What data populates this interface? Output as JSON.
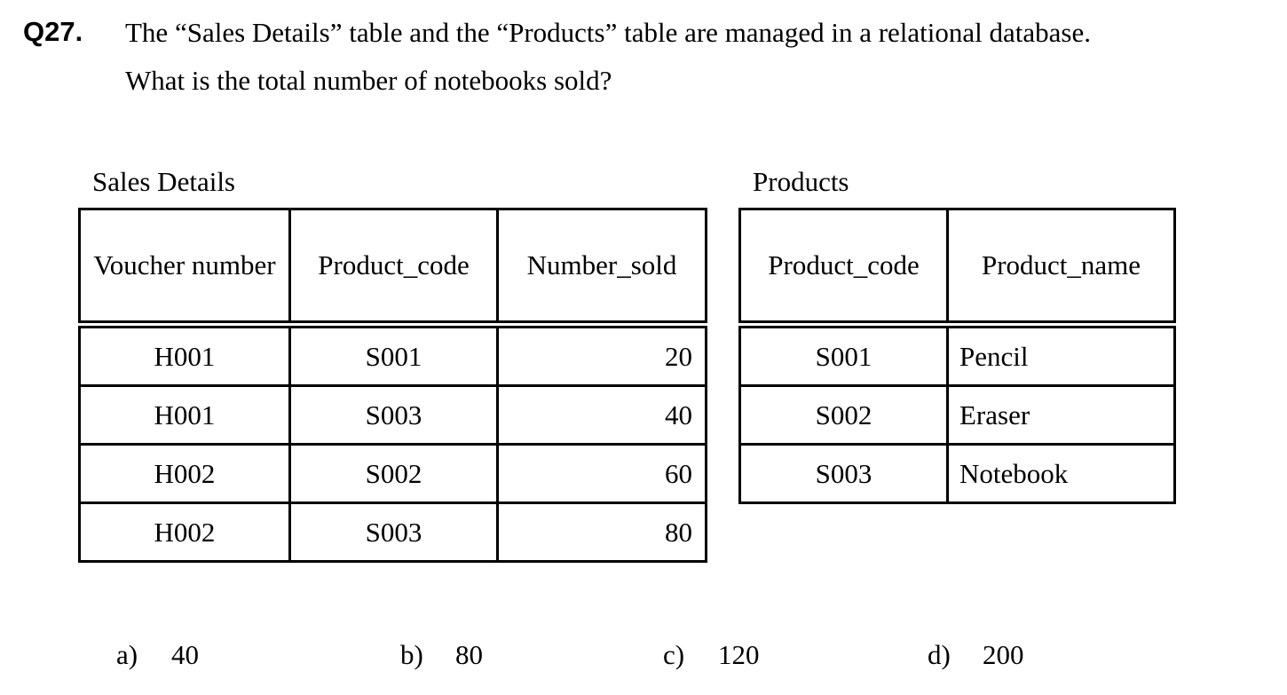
{
  "question": {
    "number": "Q27.",
    "line1": "The “Sales Details” table and the “Products” table are managed in a relational database.",
    "line2": "What is the total number of notebooks sold?"
  },
  "sales_table": {
    "caption": "Sales Details",
    "headers": [
      "Voucher number",
      "Product_code",
      "Number_sold"
    ],
    "rows": [
      [
        "H001",
        "S001",
        "20"
      ],
      [
        "H001",
        "S003",
        "40"
      ],
      [
        "H002",
        "S002",
        "60"
      ],
      [
        "H002",
        "S003",
        "80"
      ]
    ]
  },
  "products_table": {
    "caption": "Products",
    "headers": [
      "Product_code",
      "Product_name"
    ],
    "rows": [
      [
        "S001",
        "Pencil"
      ],
      [
        "S002",
        "Eraser"
      ],
      [
        "S003",
        "Notebook"
      ]
    ]
  },
  "choices": [
    {
      "label": "a)",
      "value": "40"
    },
    {
      "label": "b)",
      "value": "80"
    },
    {
      "label": "c)",
      "value": "120"
    },
    {
      "label": "d)",
      "value": "200"
    }
  ]
}
